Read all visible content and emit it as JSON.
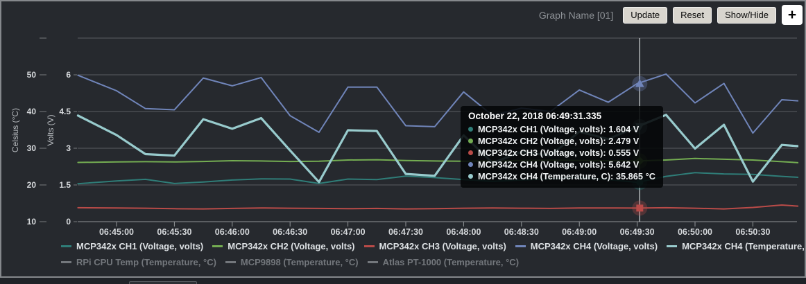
{
  "header": {
    "graph_name": "Graph Name [01]",
    "buttons": {
      "update": "Update",
      "reset": "Reset",
      "show_hide": "Show/Hide",
      "add": "+"
    }
  },
  "chart_data": {
    "type": "line",
    "title": "Graph Name [01]",
    "x_axis": {
      "tick_labels": [
        "06:45:00",
        "06:45:30",
        "06:46:00",
        "06:46:30",
        "06:47:00",
        "06:47:30",
        "06:48:00",
        "06:48:30",
        "06:49:00",
        "06:49:30",
        "06:50:00",
        "06:50:30"
      ]
    },
    "y_axes": {
      "celsius": {
        "title": "Celsius (°C)",
        "ticks": [
          "10",
          "20",
          "30",
          "40",
          "50"
        ],
        "range": [
          10,
          60
        ]
      },
      "volts": {
        "title": "Volts (V)",
        "ticks": [
          "0",
          "1.5",
          "3",
          "4.5",
          "6"
        ],
        "range": [
          0,
          7.5
        ]
      }
    },
    "x": [
      "06:44:40",
      "06:45:00",
      "06:45:15",
      "06:45:30",
      "06:45:45",
      "06:46:00",
      "06:46:15",
      "06:46:30",
      "06:46:45",
      "06:47:00",
      "06:47:15",
      "06:47:30",
      "06:47:45",
      "06:48:00",
      "06:48:15",
      "06:48:30",
      "06:48:45",
      "06:49:00",
      "06:49:15",
      "06:49:30",
      "06:49:45",
      "06:50:00",
      "06:50:15",
      "06:50:30",
      "06:50:45",
      "06:51:00"
    ],
    "series": [
      {
        "name": "MCP342x CH1 (Voltage, volts)",
        "axis": "volts",
        "color": "#2f7d78",
        "marker": "circle",
        "width": 2,
        "values": [
          1.55,
          1.66,
          1.73,
          1.56,
          1.62,
          1.7,
          1.75,
          1.74,
          1.56,
          1.74,
          1.72,
          1.86,
          1.8,
          1.72,
          1.65,
          1.7,
          1.75,
          1.8,
          1.72,
          1.604,
          1.85,
          2.0,
          1.95,
          1.93,
          1.85,
          1.78
        ]
      },
      {
        "name": "MCP342x CH2 (Voltage, volts)",
        "axis": "volts",
        "color": "#74ad52",
        "marker": "diamond",
        "width": 2,
        "values": [
          2.42,
          2.44,
          2.45,
          2.44,
          2.46,
          2.49,
          2.48,
          2.46,
          2.47,
          2.52,
          2.53,
          2.5,
          2.48,
          2.47,
          2.48,
          2.5,
          2.51,
          2.5,
          2.49,
          2.479,
          2.52,
          2.58,
          2.55,
          2.52,
          2.45,
          2.38
        ]
      },
      {
        "name": "MCP342x CH3 (Voltage, volts)",
        "axis": "volts",
        "color": "#b94b48",
        "marker": "square",
        "width": 2,
        "values": [
          0.57,
          0.56,
          0.55,
          0.53,
          0.52,
          0.54,
          0.56,
          0.55,
          0.54,
          0.53,
          0.54,
          0.52,
          0.53,
          0.55,
          0.56,
          0.55,
          0.54,
          0.56,
          0.56,
          0.555,
          0.57,
          0.55,
          0.52,
          0.58,
          0.68,
          0.6
        ]
      },
      {
        "name": "MCP342x CH4 (Voltage, volts)",
        "axis": "volts",
        "color": "#7085ba",
        "marker": "triangle-up",
        "width": 2,
        "values": [
          5.98,
          5.35,
          4.62,
          4.57,
          5.87,
          5.55,
          5.89,
          4.33,
          3.65,
          5.5,
          5.5,
          3.92,
          3.88,
          5.3,
          4.34,
          4.64,
          4.5,
          5.38,
          4.88,
          5.642,
          6.03,
          4.85,
          5.65,
          3.62,
          4.98,
          4.9
        ]
      },
      {
        "name": "MCP342x CH4 (Temperature, C)",
        "axis": "celsius",
        "color": "#98cbcd",
        "marker": "triangle-down",
        "width": 3.2,
        "values": [
          38.9,
          33.6,
          28.4,
          28.0,
          37.9,
          35.3,
          38.2,
          29.4,
          20.8,
          34.9,
          34.7,
          23.0,
          22.5,
          33.5,
          26.0,
          29.0,
          28.0,
          34.5,
          32.5,
          35.865,
          39.1,
          29.9,
          36.4,
          20.9,
          30.9,
          30.3
        ]
      }
    ],
    "disabled_series": [
      "RPi CPU Temp (Temperature, °C)",
      "MCP9898 (Temperature, °C)",
      "Atlas PT-1000 (Temperature, °C)"
    ],
    "disabled_color": "#73777c",
    "crosshair": {
      "time": "06:49:31.335"
    },
    "tooltip": {
      "title": "October 22, 2018 06:49:31.335",
      "rows": [
        {
          "label": "MCP342x CH1 (Voltage, volts)",
          "value": "1.604 V",
          "color": "#2f7d78",
          "y": 1.604,
          "axis": "volts"
        },
        {
          "label": "MCP342x CH2 (Voltage, volts)",
          "value": "2.479 V",
          "color": "#74ad52",
          "y": 2.479,
          "axis": "volts"
        },
        {
          "label": "MCP342x CH3 (Voltage, volts)",
          "value": "0.555 V",
          "color": "#b94b48",
          "y": 0.555,
          "axis": "volts"
        },
        {
          "label": "MCP342x CH4 (Voltage, volts)",
          "value": "5.642 V",
          "color": "#7085ba",
          "y": 5.642,
          "axis": "volts"
        },
        {
          "label": "MCP342x CH4 (Temperature, C)",
          "value": "35.865 °C",
          "color": "#98cbcd",
          "y": 35.865,
          "axis": "celsius"
        }
      ]
    },
    "legend_position": "bottom",
    "grid": true
  }
}
